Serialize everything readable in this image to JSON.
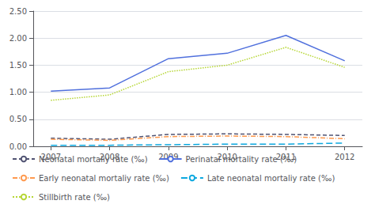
{
  "chart_data": {
    "type": "line",
    "x": [
      2007,
      2008,
      2009,
      2010,
      2011,
      2012
    ],
    "xlim": [
      2006.7,
      2012.3
    ],
    "xticks": [
      2007,
      2008,
      2009,
      2010,
      2011,
      2012
    ],
    "ylim": [
      0.0,
      2.5
    ],
    "yticks": [
      {
        "value": 0.0,
        "label": "0.00"
      },
      {
        "value": 0.5,
        "label": "0.50"
      },
      {
        "value": 1.0,
        "label": "1.00"
      },
      {
        "value": 1.5,
        "label": "1.50"
      },
      {
        "value": 2.0,
        "label": "2.00"
      },
      {
        "value": 2.5,
        "label": "2.50"
      }
    ],
    "grid": true,
    "legend": "bottom left",
    "legend_order": [
      "Neonatal mortaliy rate (‰)",
      "Perinatal mortality rate (‰)",
      "Early neonatal mortaliy rate (‰)",
      "Late neonatal mortaliy rate (‰)",
      "Stillbirth rate (‰)"
    ],
    "series": [
      {
        "name": "Perinatal mortality rate (‰)",
        "line_style": "solid",
        "values": [
          1.02,
          1.08,
          1.62,
          1.72,
          2.05,
          1.58
        ]
      },
      {
        "name": "Stillbirth rate (‰)",
        "line_style": "dotted",
        "values": [
          0.85,
          0.95,
          1.38,
          1.5,
          1.83,
          1.46
        ]
      },
      {
        "name": "Neonatal mortaliy rate (‰)",
        "line_style": "dashed",
        "values": [
          0.15,
          0.13,
          0.22,
          0.23,
          0.22,
          0.2
        ]
      },
      {
        "name": "Early neonatal mortaliy rate (‰)",
        "line_style": "dashdot",
        "values": [
          0.13,
          0.11,
          0.18,
          0.19,
          0.18,
          0.14
        ]
      },
      {
        "name": "Late neonatal mortaliy rate (‰)",
        "line_style": "longdash",
        "values": [
          0.02,
          0.02,
          0.03,
          0.04,
          0.04,
          0.06
        ]
      }
    ]
  }
}
